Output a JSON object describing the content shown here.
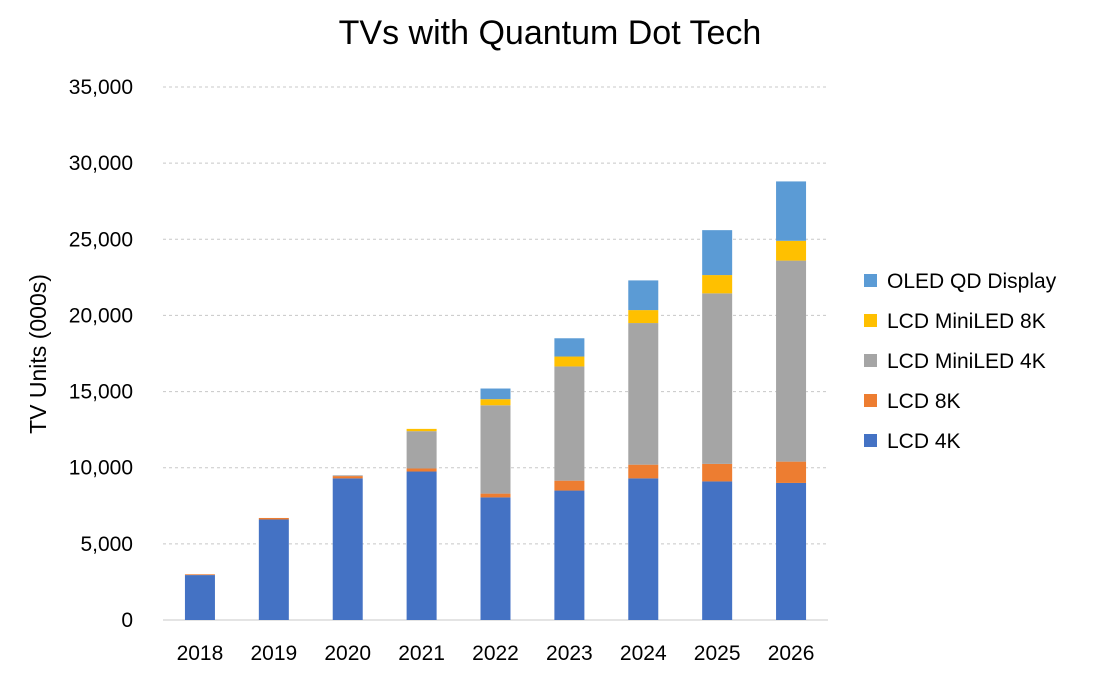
{
  "chart_data": {
    "type": "bar",
    "stacked": true,
    "title": "TVs with Quantum Dot Tech",
    "xlabel": "",
    "ylabel": "TV Units (000s)",
    "ylim": [
      0,
      35000
    ],
    "yticks": [
      0,
      5000,
      10000,
      15000,
      20000,
      25000,
      30000,
      35000
    ],
    "ytick_labels": [
      "0",
      "5,000",
      "10,000",
      "15,000",
      "20,000",
      "25,000",
      "30,000",
      "35,000"
    ],
    "grid": true,
    "legend_position": "right",
    "categories": [
      "2018",
      "2019",
      "2020",
      "2021",
      "2022",
      "2023",
      "2024",
      "2025",
      "2026"
    ],
    "series": [
      {
        "name": "LCD 4K",
        "color": "#4472C4",
        "values": [
          2950,
          6600,
          9300,
          9750,
          8050,
          8500,
          9300,
          9100,
          9000
        ]
      },
      {
        "name": "LCD 8K",
        "color": "#ED7D31",
        "values": [
          50,
          100,
          150,
          200,
          250,
          650,
          900,
          1150,
          1400
        ]
      },
      {
        "name": "LCD MiniLED 4K",
        "color": "#A5A5A5",
        "values": [
          0,
          0,
          50,
          2450,
          5800,
          7500,
          9300,
          11200,
          13200
        ]
      },
      {
        "name": "LCD MiniLED 8K",
        "color": "#FFC000",
        "values": [
          0,
          0,
          0,
          150,
          400,
          650,
          850,
          1200,
          1300
        ]
      },
      {
        "name": "OLED QD Display",
        "color": "#5B9BD5",
        "values": [
          0,
          0,
          0,
          0,
          700,
          1200,
          1950,
          2950,
          3900
        ]
      }
    ]
  }
}
